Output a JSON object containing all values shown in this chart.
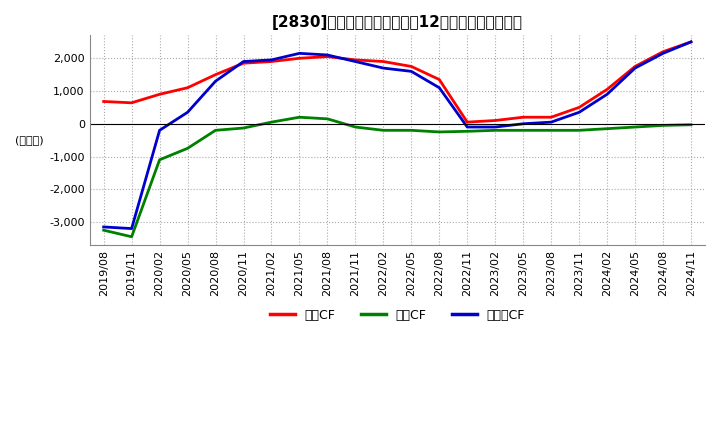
{
  "title": "[2830]　キャッシュフローの12か月移動合計の推移",
  "ylabel": "(百万円)",
  "ylim": [
    -3700,
    2700
  ],
  "yticks": [
    -3000,
    -2000,
    -1000,
    0,
    1000,
    2000
  ],
  "legend": [
    "営業CF",
    "投資CF",
    "フリーCF"
  ],
  "colors": [
    "#ff0000",
    "#008000",
    "#0000cc"
  ],
  "x_labels": [
    "2019/08",
    "2019/11",
    "2020/02",
    "2020/05",
    "2020/08",
    "2020/11",
    "2021/02",
    "2021/05",
    "2021/08",
    "2021/11",
    "2022/02",
    "2022/05",
    "2022/08",
    "2022/11",
    "2023/02",
    "2023/05",
    "2023/08",
    "2023/11",
    "2024/02",
    "2024/05",
    "2024/08",
    "2024/11"
  ],
  "operating_cf": [
    680,
    640,
    900,
    1100,
    1500,
    1850,
    1900,
    2000,
    2050,
    1950,
    1900,
    1750,
    1350,
    50,
    100,
    200,
    200,
    500,
    1050,
    1750,
    2200,
    2500
  ],
  "investing_cf": [
    -3250,
    -3450,
    -1100,
    -750,
    -200,
    -130,
    50,
    200,
    150,
    -100,
    -200,
    -200,
    -250,
    -230,
    -200,
    -200,
    -200,
    -200,
    -150,
    -100,
    -50,
    -30
  ],
  "free_cf": [
    -3150,
    -3200,
    -200,
    350,
    1300,
    1900,
    1950,
    2150,
    2100,
    1900,
    1700,
    1600,
    1100,
    -100,
    -100,
    0,
    50,
    350,
    900,
    1700,
    2150,
    2500
  ]
}
